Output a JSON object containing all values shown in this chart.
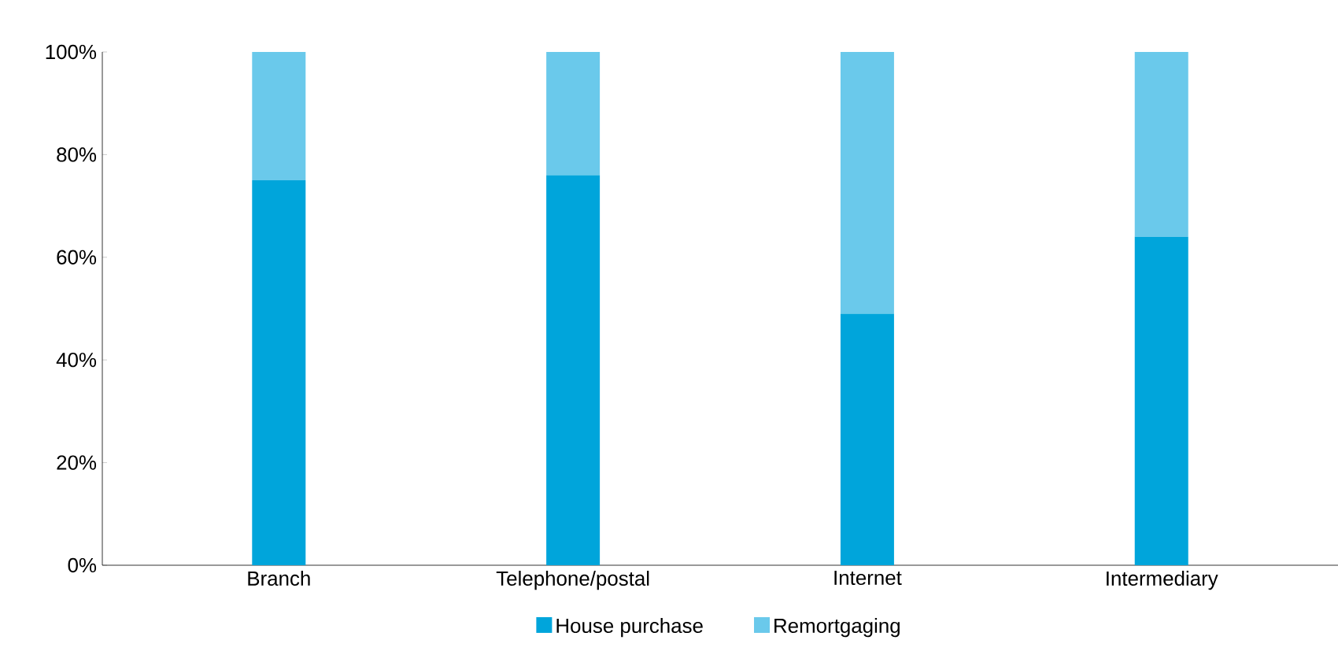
{
  "chart_data": {
    "type": "bar",
    "stacked": true,
    "categories": [
      "Branch",
      "Telephone/postal",
      "Internet",
      "Intermediary"
    ],
    "series": [
      {
        "name": "House purchase",
        "color": "#00a5db",
        "values": [
          75,
          76,
          49,
          64
        ]
      },
      {
        "name": "Remortgaging",
        "color": "#6ac9eb",
        "values": [
          25,
          24,
          51,
          36
        ]
      }
    ],
    "ylim": [
      0,
      100
    ],
    "yticks": [
      {
        "value": 0,
        "label": "0%"
      },
      {
        "value": 20,
        "label": "20%"
      },
      {
        "value": 40,
        "label": "40%"
      },
      {
        "value": 60,
        "label": "60%"
      },
      {
        "value": 80,
        "label": "80%"
      },
      {
        "value": 100,
        "label": "100%"
      }
    ],
    "grid": false,
    "legend": "bottom"
  }
}
